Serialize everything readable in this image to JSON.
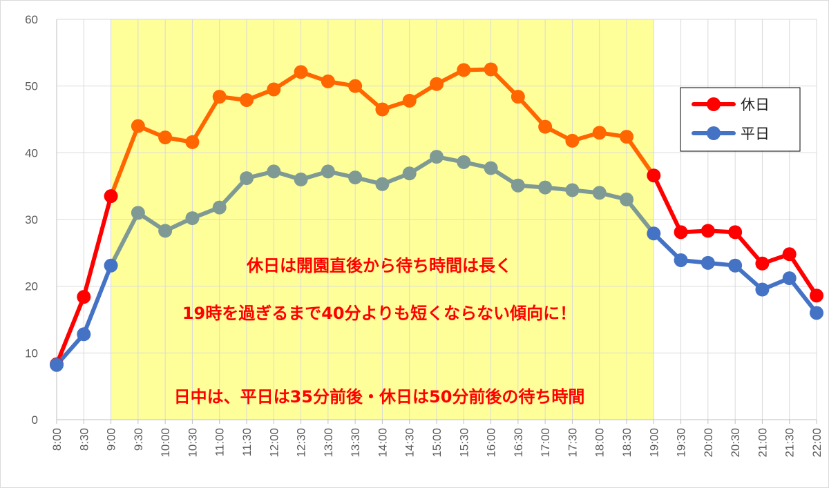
{
  "chart_data": {
    "type": "line",
    "categories": [
      "8:00",
      "8:30",
      "9:00",
      "9:30",
      "10:00",
      "10:30",
      "11:00",
      "11:30",
      "12:00",
      "12:30",
      "13:00",
      "13:30",
      "14:00",
      "14:30",
      "15:00",
      "15:30",
      "16:00",
      "16:30",
      "17:00",
      "17:30",
      "18:00",
      "18:30",
      "19:00",
      "19:30",
      "20:00",
      "20:30",
      "21:00",
      "21:30",
      "22:00"
    ],
    "series": [
      {
        "name": "休日",
        "color": "#ff0000",
        "highlight_color": "#ff6600",
        "values": [
          8.3,
          18.4,
          33.5,
          44.0,
          42.3,
          41.6,
          48.4,
          47.9,
          49.5,
          52.1,
          50.7,
          50.0,
          46.5,
          47.8,
          50.3,
          52.4,
          52.5,
          48.4,
          43.9,
          41.8,
          43.0,
          42.4,
          36.6,
          28.1,
          28.3,
          28.1,
          23.4,
          24.8,
          18.6
        ]
      },
      {
        "name": "平日",
        "color": "#4472c4",
        "highlight_color": "#7f9a94",
        "values": [
          8.2,
          12.8,
          23.1,
          31.0,
          28.3,
          30.2,
          31.8,
          36.2,
          37.2,
          36.0,
          37.2,
          36.3,
          35.3,
          36.9,
          39.4,
          38.6,
          37.7,
          35.1,
          34.8,
          34.4,
          34.0,
          33.0,
          27.9,
          23.9,
          23.5,
          23.1,
          19.5,
          21.2,
          16.0
        ]
      }
    ],
    "highlight_range": [
      "9:00",
      "19:00"
    ],
    "highlight_color": "#ffff99",
    "ylim": [
      0,
      60
    ],
    "yticks": [
      0,
      10,
      20,
      30,
      40,
      50,
      60
    ],
    "grid": true,
    "legend_position": "right",
    "annotations": [
      "休日は開園直後から待ち時間は長く",
      "19時を過ぎるまで40分よりも短くならない傾向に！",
      "日中は、平日は35分前後・休日は50分前後の待ち時間"
    ],
    "title": "",
    "xlabel": "",
    "ylabel": ""
  }
}
